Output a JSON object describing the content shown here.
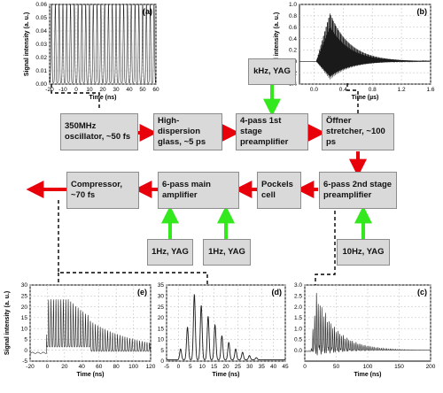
{
  "colors": {
    "laser_arrow": "#e8000b",
    "pump_arrow": "#33e81c",
    "box_fill": "#d9d9d9",
    "trace": "#1a1a1a"
  },
  "boxes": {
    "oscillator": "350MHz oscillator, ~50 fs",
    "dispersion": "High-dispersion glass, ~5 ps",
    "pre1": "4-pass 1st stage preamplifier",
    "offner": "Öffner stretcher, ~100 ps",
    "pre2": "6-pass  2nd stage preamplifier",
    "pockels": "Pockels cell",
    "main": "6-pass main amplifier",
    "compressor": "Compressor, ~70 fs",
    "khz": "kHz, YAG",
    "yag1a": "1Hz, YAG",
    "yag1b": "1Hz, YAG",
    "yag10": "10Hz, YAG"
  },
  "chart_data": [
    {
      "panel": "(a)",
      "type": "line",
      "xlabel": "Time (ns)",
      "ylabel": "Signal intensity (a. u.)",
      "xlim": [
        -20,
        60
      ],
      "ylim": [
        0,
        0.06
      ],
      "xticks": [
        "-20",
        "-10",
        "0",
        "10",
        "20",
        "30",
        "40",
        "50",
        "60"
      ],
      "yticks": [
        "0.00",
        "0.01",
        "0.02",
        "0.03",
        "0.04",
        "0.05",
        "0.06"
      ],
      "signal": "continuous pulse train, period ~2.86 ns, min 0.001, max 0.062"
    },
    {
      "panel": "(b)",
      "type": "line",
      "xlabel": "Time (µs)",
      "ylabel": "Signal intensity (a. u.)",
      "xlim": [
        -0.2,
        1.6
      ],
      "ylim": [
        -0.4,
        1.0
      ],
      "xticks": [
        "0.0",
        "0.4",
        "0.8",
        "1.2",
        "1.6"
      ],
      "yticks": [
        "-0.4",
        "-0.2",
        "0.0",
        "0.2",
        "0.4",
        "0.6",
        "0.8",
        "1.0"
      ],
      "signal": "pulse train envelope peak ~0.88 at 0.22 µs, min ~-0.32, decays by ~1.0 µs"
    },
    {
      "panel": "(c)",
      "type": "line",
      "xlabel": "Time (ns)",
      "ylabel": "Signal intensity (a. u.)",
      "xlim": [
        0,
        200
      ],
      "ylim": [
        -0.5,
        3.0
      ],
      "xticks": [
        "0",
        "50",
        "100",
        "150",
        "200"
      ],
      "yticks": [
        "0.0",
        "0.5",
        "1.0",
        "1.5",
        "2.0",
        "2.5",
        "3.0"
      ],
      "signal": "pulse train starting ~10 ns, peak ~2.5 at ~20 ns, decays to ~0 by 120 ns"
    },
    {
      "panel": "(d)",
      "type": "line",
      "xlabel": "Time (ns)",
      "ylabel": "Signal intensity (a. u.)",
      "xlim": [
        -5,
        45
      ],
      "ylim": [
        0,
        35
      ],
      "xticks": [
        "-5",
        "0",
        "5",
        "10",
        "15",
        "20",
        "25",
        "30",
        "35",
        "40",
        "45"
      ],
      "yticks": [
        "0",
        "5",
        "10",
        "15",
        "20",
        "25",
        "30",
        "35"
      ],
      "x": [
        0.9,
        3.8,
        6.7,
        9.6,
        12.5,
        15.4,
        18.3,
        21.2,
        24.1,
        27.0,
        29.9,
        32.8
      ],
      "values": [
        5,
        15,
        30,
        25,
        20,
        16,
        11,
        8,
        5,
        3.5,
        2,
        1
      ]
    },
    {
      "panel": "(e)",
      "type": "line",
      "xlabel": "Time (ns)",
      "ylabel": "Signal intensity (a. u.)",
      "xlim": [
        -20,
        120
      ],
      "ylim": [
        -5,
        30
      ],
      "xticks": [
        "-20",
        "0",
        "20",
        "40",
        "60",
        "80",
        "100",
        "120"
      ],
      "yticks": [
        "-5",
        "0",
        "5",
        "10",
        "15",
        "20",
        "25",
        "30"
      ],
      "signal": "pulse train start ~0 ns, peaks ~22 at 5-25 ns, tapering to ~5 at 100 ns, baseline ~-1"
    }
  ]
}
